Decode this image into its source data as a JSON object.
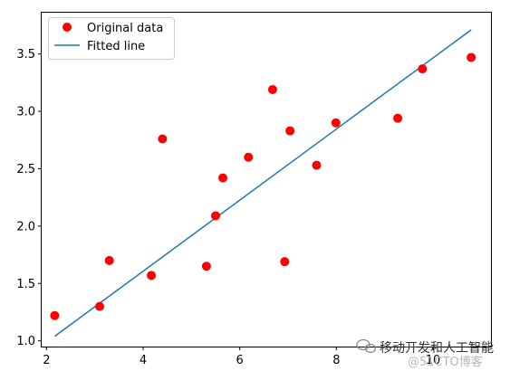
{
  "chart_data": {
    "type": "scatter",
    "title": "",
    "xlabel": "",
    "ylabel": "",
    "xlim": [
      1.9,
      11.2
    ],
    "ylim": [
      0.95,
      3.86
    ],
    "x_ticks": [
      2,
      4,
      6,
      8,
      10
    ],
    "x_tick_labels": [
      "2",
      "4",
      "6",
      "8",
      "10"
    ],
    "y_ticks": [
      1.0,
      1.5,
      2.0,
      2.5,
      3.0,
      3.5
    ],
    "y_tick_labels": [
      "1.0",
      "1.5",
      "2.0",
      "2.5",
      "3.0",
      "3.5"
    ],
    "grid": false,
    "legend_position": "upper-left",
    "series": [
      {
        "name": "Original data",
        "kind": "scatter",
        "color": "#ff0000",
        "points": [
          {
            "x": 2.17,
            "y": 1.22
          },
          {
            "x": 3.1,
            "y": 1.3
          },
          {
            "x": 3.3,
            "y": 1.7
          },
          {
            "x": 4.17,
            "y": 1.57
          },
          {
            "x": 4.4,
            "y": 2.76
          },
          {
            "x": 5.31,
            "y": 1.65
          },
          {
            "x": 5.5,
            "y": 2.09
          },
          {
            "x": 5.65,
            "y": 2.42
          },
          {
            "x": 6.18,
            "y": 2.6
          },
          {
            "x": 6.68,
            "y": 3.19
          },
          {
            "x": 6.93,
            "y": 1.69
          },
          {
            "x": 7.04,
            "y": 2.83
          },
          {
            "x": 7.59,
            "y": 2.53
          },
          {
            "x": 7.99,
            "y": 2.9
          },
          {
            "x": 9.27,
            "y": 2.94
          },
          {
            "x": 9.78,
            "y": 3.37
          },
          {
            "x": 10.79,
            "y": 3.47
          }
        ]
      },
      {
        "name": "Fitted line",
        "kind": "line",
        "color": "#1f77b4",
        "points": [
          {
            "x": 2.17,
            "y": 1.04
          },
          {
            "x": 10.79,
            "y": 3.71
          }
        ]
      }
    ]
  },
  "watermark": {
    "text": "移动开发和人工智能",
    "subtext": "@51CTO博客"
  }
}
